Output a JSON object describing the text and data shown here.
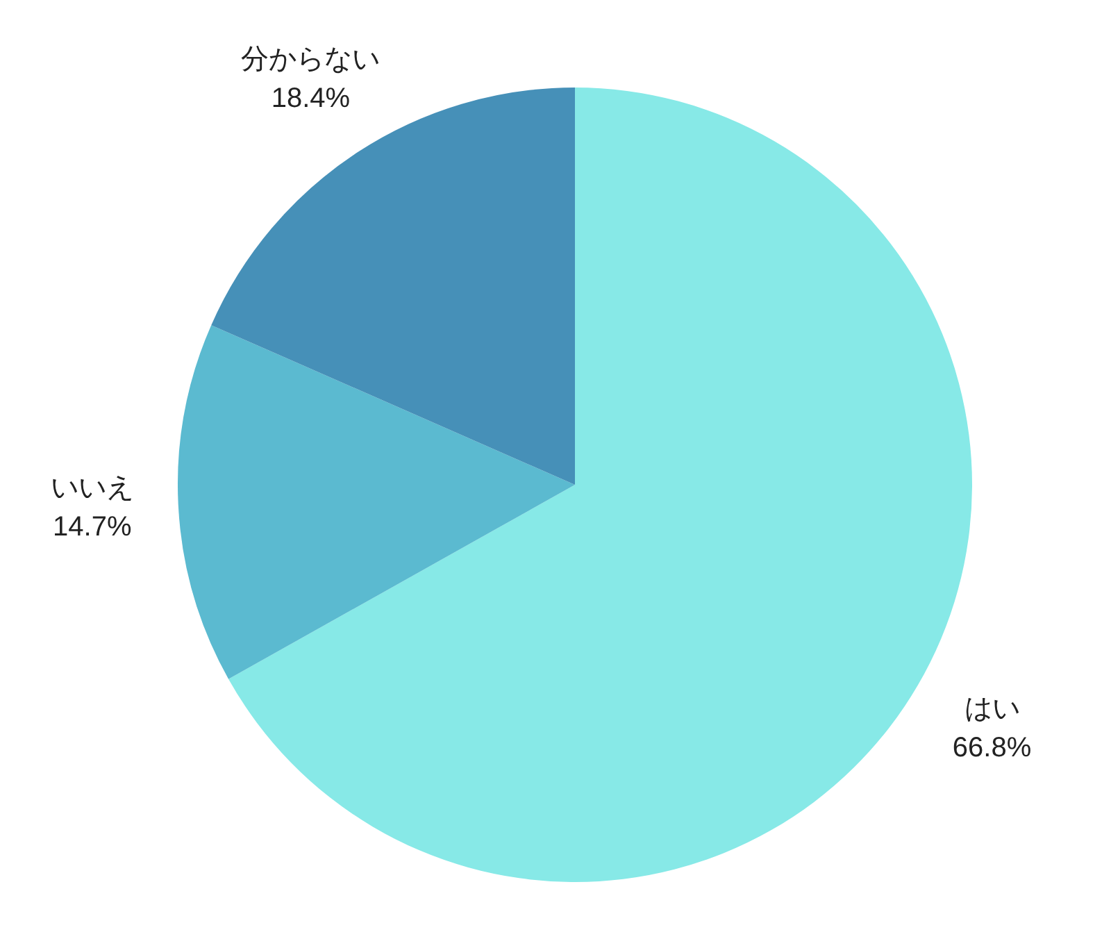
{
  "chart_data": {
    "type": "pie",
    "categories": [
      "はい",
      "いいえ",
      "分からない"
    ],
    "values": [
      66.8,
      14.7,
      18.4
    ],
    "colors": [
      "#87e9e7",
      "#5bbad0",
      "#4690b8"
    ],
    "value_labels": [
      "66.8%",
      "14.7%",
      "18.4%"
    ],
    "legend": false
  }
}
